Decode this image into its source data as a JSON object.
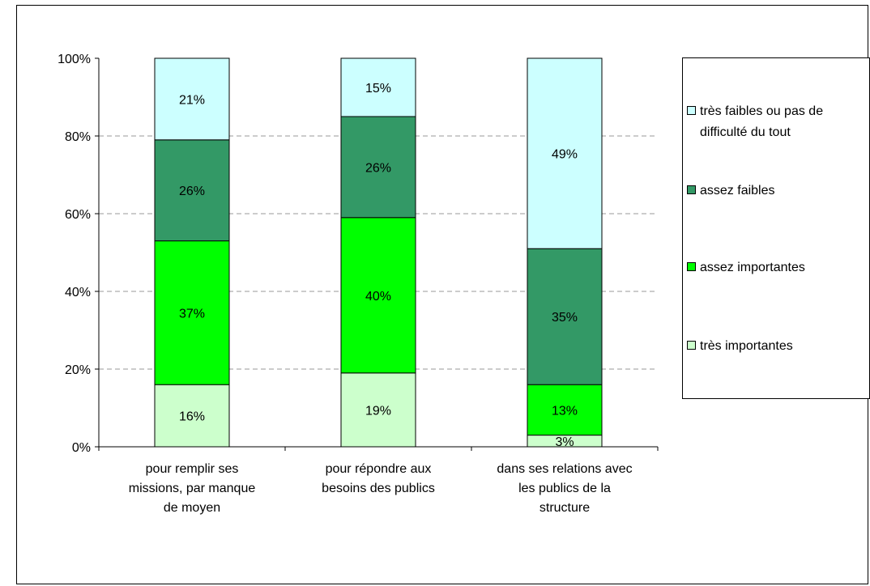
{
  "chart_data": {
    "type": "bar",
    "stacked": true,
    "percent": true,
    "categories": [
      "pour remplir ses missions, par manque de moyen",
      "pour répondre aux besoins des publics",
      "dans ses relations avec les publics de la structure"
    ],
    "category_lines": [
      [
        "pour remplir ses",
        "missions, par manque",
        "de moyen"
      ],
      [
        "pour répondre aux",
        "besoins des publics"
      ],
      [
        "dans ses relations avec",
        "les publics de la",
        "structure"
      ]
    ],
    "series": [
      {
        "name": "très importantes",
        "color": "#ccffcc",
        "values": [
          16,
          19,
          3
        ],
        "labels": [
          "16%",
          "19%",
          "3%"
        ]
      },
      {
        "name": "assez importantes",
        "color": "#00ff00",
        "values": [
          37,
          40,
          13
        ],
        "labels": [
          "37%",
          "40%",
          "13%"
        ]
      },
      {
        "name": "assez faibles",
        "color": "#339966",
        "values": [
          26,
          26,
          35
        ],
        "labels": [
          "26%",
          "26%",
          "35%"
        ]
      },
      {
        "name": "très faibles ou pas de difficulté du tout",
        "color": "#ccffff",
        "values": [
          21,
          15,
          49
        ],
        "labels": [
          "21%",
          "15%",
          "49%"
        ]
      }
    ],
    "legend_order": [
      3,
      2,
      1,
      0
    ],
    "legend_lines": {
      "3": [
        "très faibles ou pas de",
        "difficulté du tout"
      ]
    },
    "yticks": [
      "0%",
      "20%",
      "40%",
      "60%",
      "80%",
      "100%"
    ],
    "ylim": [
      0,
      100
    ],
    "grid": true,
    "legend_position": "right"
  }
}
